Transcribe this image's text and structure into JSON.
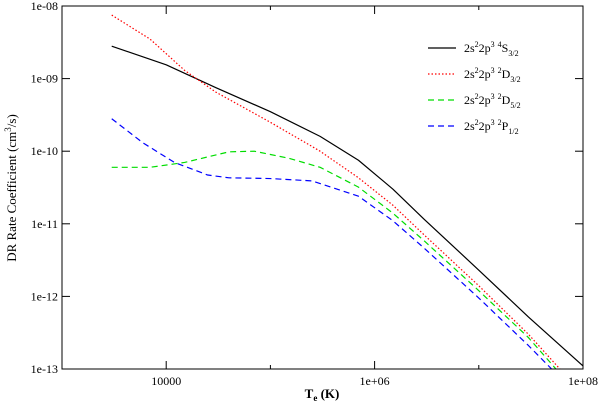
{
  "chart_data": {
    "type": "line",
    "xscale": "log",
    "yscale": "log",
    "xlim": [
      1000,
      100000000
    ],
    "ylim": [
      1e-13,
      1e-08
    ],
    "xticks": [
      {
        "value": 10000,
        "label": "10000"
      },
      {
        "value": 1000000,
        "label": "1e+06"
      },
      {
        "value": 100000000,
        "label": "1e+08"
      }
    ],
    "yticks": [
      {
        "value": 1e-13,
        "label": "1e-13"
      },
      {
        "value": 1e-12,
        "label": "1e-12"
      },
      {
        "value": 1e-11,
        "label": "1e-11"
      },
      {
        "value": 1e-10,
        "label": "1e-10"
      },
      {
        "value": 1e-09,
        "label": "1e-09"
      },
      {
        "value": 1e-08,
        "label": "1e-08"
      }
    ],
    "xlabel": {
      "main": "T",
      "sub": "e",
      "rest": " (K)"
    },
    "ylabel": {
      "main": "DR Rate Coefficient (cm",
      "sup": "3",
      "rest": "/s)"
    },
    "legend_position": "top-right",
    "series": [
      {
        "name": "2s22p3 4S3/2",
        "label_parts": [
          [
            "2s",
            "n"
          ],
          [
            "2",
            "sup"
          ],
          [
            "2p",
            "n"
          ],
          [
            "3",
            "sup"
          ],
          [
            " ",
            "n"
          ],
          [
            "4",
            "sup"
          ],
          [
            "S",
            "n"
          ],
          [
            "3/2",
            "sub"
          ]
        ],
        "color": "#000000",
        "dash": "solid",
        "x": [
          3000,
          10000,
          30000,
          100000,
          300000,
          700000,
          1500000,
          3000000,
          10000000,
          30000000,
          100000000
        ],
        "y": [
          2.8e-09,
          1.55e-09,
          7.5e-10,
          3.5e-10,
          1.6e-10,
          7.5e-11,
          3e-11,
          1.15e-11,
          2.3e-12,
          5.2e-13,
          1.1e-13
        ]
      },
      {
        "name": "2s22p3 2D3/2",
        "label_parts": [
          [
            "2s",
            "n"
          ],
          [
            "2",
            "sup"
          ],
          [
            "2p",
            "n"
          ],
          [
            "3",
            "sup"
          ],
          [
            " ",
            "n"
          ],
          [
            "2",
            "sup"
          ],
          [
            "D",
            "n"
          ],
          [
            "3/2",
            "sub"
          ]
        ],
        "color": "#ff0000",
        "dash": "dotted",
        "x": [
          3000,
          7000,
          15000,
          30000,
          100000,
          300000,
          700000,
          1500000,
          3000000,
          10000000,
          30000000,
          60000000
        ],
        "y": [
          7.5e-09,
          3.5e-09,
          1.3e-09,
          6.5e-10,
          2.5e-10,
          1e-10,
          4.3e-11,
          1.8e-11,
          7e-12,
          1.4e-12,
          3e-13,
          1e-13
        ]
      },
      {
        "name": "2s22p3 2D5/2",
        "label_parts": [
          [
            "2s",
            "n"
          ],
          [
            "2",
            "sup"
          ],
          [
            "2p",
            "n"
          ],
          [
            "3",
            "sup"
          ],
          [
            " ",
            "n"
          ],
          [
            "2",
            "sup"
          ],
          [
            "D",
            "n"
          ],
          [
            "5/2",
            "sub"
          ]
        ],
        "color": "#00dd00",
        "dash": "dashed",
        "x": [
          3000,
          7000,
          15000,
          40000,
          70000,
          150000,
          300000,
          700000,
          1500000,
          3000000,
          10000000,
          30000000,
          55000000
        ],
        "y": [
          6e-11,
          6e-11,
          7e-11,
          9.8e-11,
          1e-10,
          8e-11,
          6e-11,
          3.2e-11,
          1.4e-11,
          5.8e-12,
          1.2e-12,
          2.7e-13,
          1e-13
        ]
      },
      {
        "name": "2s22p3 2P1/2",
        "label_parts": [
          [
            "2s",
            "n"
          ],
          [
            "2",
            "sup"
          ],
          [
            "2p",
            "n"
          ],
          [
            "3",
            "sup"
          ],
          [
            " ",
            "n"
          ],
          [
            "2",
            "sup"
          ],
          [
            "P",
            "n"
          ],
          [
            "1/2",
            "sub"
          ]
        ],
        "color": "#0000ff",
        "dash": "dashed",
        "x": [
          3000,
          6000,
          12000,
          25000,
          40000,
          100000,
          250000,
          700000,
          1500000,
          3000000,
          10000000,
          30000000,
          50000000
        ],
        "y": [
          2.8e-10,
          1.3e-10,
          7e-11,
          4.7e-11,
          4.3e-11,
          4.2e-11,
          3.9e-11,
          2.4e-11,
          1.1e-11,
          4.6e-12,
          9.5e-13,
          2.1e-13,
          1e-13
        ]
      }
    ]
  }
}
